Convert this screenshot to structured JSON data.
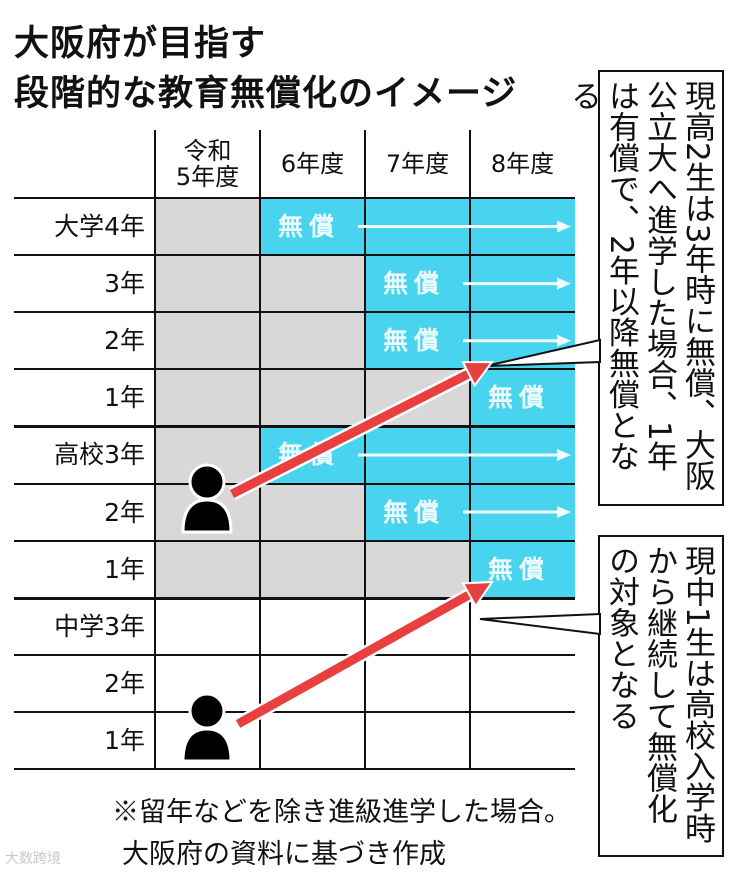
{
  "title": {
    "line1": "大阪府が目指す",
    "line2": "段階的な教育無償化のイメージ"
  },
  "columns": [
    "令和\n5年度",
    "6年度",
    "7年度",
    "8年度"
  ],
  "free_label": "無償",
  "rows": [
    {
      "label": "大学4年",
      "cells": [
        "gray",
        "free",
        "free",
        "free"
      ],
      "label_at": 1,
      "arrow": true
    },
    {
      "label": "3年",
      "cells": [
        "gray",
        "gray",
        "free",
        "free"
      ],
      "label_at": 2,
      "arrow": true
    },
    {
      "label": "2年",
      "cells": [
        "gray",
        "gray",
        "free",
        "free"
      ],
      "label_at": 2,
      "arrow": true
    },
    {
      "label": "1年",
      "cells": [
        "gray",
        "gray",
        "gray",
        "free"
      ],
      "label_at": 3,
      "arrow": false
    },
    {
      "label": "高校3年",
      "cells": [
        "gray",
        "free",
        "free",
        "free"
      ],
      "label_at": 1,
      "arrow": true
    },
    {
      "label": "2年",
      "cells": [
        "gray",
        "gray",
        "free",
        "free"
      ],
      "label_at": 2,
      "arrow": true
    },
    {
      "label": "1年",
      "cells": [
        "gray",
        "gray",
        "gray",
        "free"
      ],
      "label_at": 3,
      "arrow": false
    },
    {
      "label": "中学3年",
      "cells": [
        "white",
        "white",
        "white",
        "white"
      ]
    },
    {
      "label": "2年",
      "cells": [
        "white",
        "white",
        "white",
        "white"
      ]
    },
    {
      "label": "1年",
      "cells": [
        "white",
        "white",
        "white",
        "white"
      ]
    }
  ],
  "colors": {
    "free": "#48d4ef",
    "not_free": "#d8d8d8",
    "arrow": "#e8403f",
    "person": "#000000"
  },
  "callouts": [
    {
      "text": "現高2生は3年時に無償、大阪公立大へ進学した場合、1年は有償で、2年以降無償となる"
    },
    {
      "text": "現中1生は高校入学時から継続して無償化の対象となる"
    }
  ],
  "notes": [
    "※留年などを除き進級進学した場合。",
    "大阪府の資料に基づき作成"
  ],
  "watermark": "大数跨境"
}
